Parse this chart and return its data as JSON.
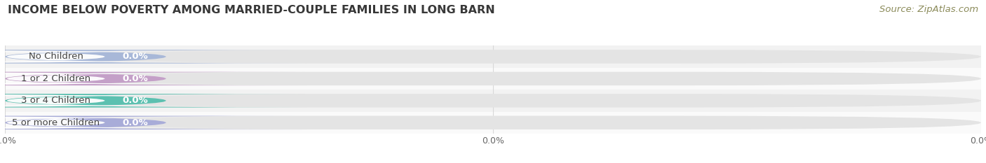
{
  "title": "INCOME BELOW POVERTY AMONG MARRIED-COUPLE FAMILIES IN LONG BARN",
  "source": "Source: ZipAtlas.com",
  "categories": [
    "No Children",
    "1 or 2 Children",
    "3 or 4 Children",
    "5 or more Children"
  ],
  "values": [
    0.0,
    0.0,
    0.0,
    0.0
  ],
  "bar_colors": [
    "#a8b8d8",
    "#c4a0c8",
    "#5cc0b0",
    "#a8acd8"
  ],
  "background_color": "#ffffff",
  "title_fontsize": 11.5,
  "source_fontsize": 9.5,
  "label_fontsize": 9.5,
  "value_fontsize": 9.5,
  "tick_fontsize": 9,
  "bar_height": 0.62,
  "row_bg_even": "#f2f2f2",
  "row_bg_odd": "#fafafa",
  "grid_color": "#d8d8d8",
  "label_text_color": "#444444",
  "value_text_color": "#ffffff",
  "white_pill_color": "#ffffff",
  "full_bar_bg": "#e4e4e4"
}
